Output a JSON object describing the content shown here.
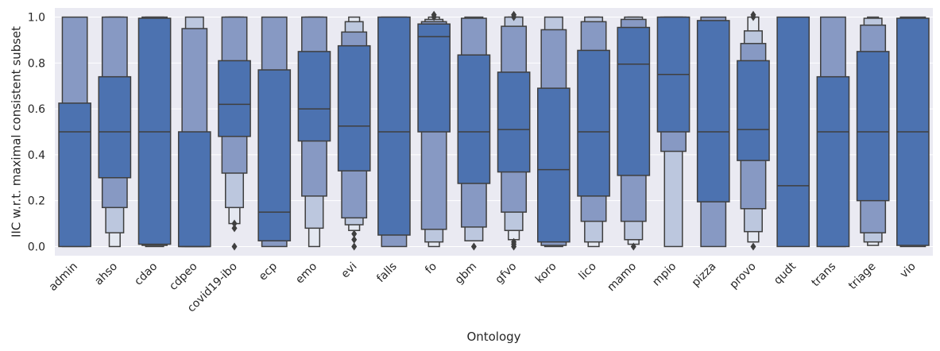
{
  "chart_data": {
    "type": "boxen",
    "xlabel": "Ontology",
    "ylabel": "IIC w.r.t. maximal consistent subset",
    "ylim": [
      -0.04,
      1.04
    ],
    "yticks": [
      0.0,
      0.2,
      0.4,
      0.6,
      0.8,
      1.0
    ],
    "ytick_labels": [
      "0.0",
      "0.2",
      "0.4",
      "0.6",
      "0.8",
      "1.0"
    ],
    "grid": true,
    "color": "#4c72b0",
    "boxes": [
      {
        "label": "admin",
        "median": 0.5,
        "levels": [
          [
            0.0,
            0.625
          ],
          [
            0.0,
            1.0
          ]
        ],
        "outliers": []
      },
      {
        "label": "ahso",
        "median": 0.5,
        "levels": [
          [
            0.3,
            0.74
          ],
          [
            0.17,
            1.0
          ],
          [
            0.06,
            1.0
          ],
          [
            0.0,
            1.0
          ]
        ],
        "outliers": []
      },
      {
        "label": "cdao",
        "median": 0.5,
        "levels": [
          [
            0.01,
            0.995
          ],
          [
            0.005,
            1.0
          ],
          [
            0.0,
            1.0
          ]
        ],
        "outliers": []
      },
      {
        "label": "cdpeo",
        "median": 0.0,
        "levels": [
          [
            0.0,
            0.5
          ],
          [
            0.0,
            0.95
          ],
          [
            0.0,
            1.0
          ]
        ],
        "outliers": []
      },
      {
        "label": "covid19-ibo",
        "median": 0.62,
        "levels": [
          [
            0.48,
            0.81
          ],
          [
            0.32,
            1.0
          ],
          [
            0.17,
            1.0
          ],
          [
            0.1,
            1.0
          ]
        ],
        "outliers": [
          0.0,
          0.08,
          0.1
        ]
      },
      {
        "label": "ecp",
        "median": 0.15,
        "levels": [
          [
            0.025,
            0.77
          ],
          [
            0.0,
            1.0
          ]
        ],
        "outliers": []
      },
      {
        "label": "emo",
        "median": 0.6,
        "levels": [
          [
            0.46,
            0.85
          ],
          [
            0.22,
            1.0
          ],
          [
            0.08,
            1.0
          ],
          [
            0.0,
            1.0
          ]
        ],
        "outliers": []
      },
      {
        "label": "evi",
        "median": 0.525,
        "levels": [
          [
            0.33,
            0.875
          ],
          [
            0.125,
            0.935
          ],
          [
            0.095,
            0.98
          ],
          [
            0.07,
            1.0
          ]
        ],
        "outliers": [
          0.0,
          0.03,
          0.055
        ]
      },
      {
        "label": "falls",
        "median": 0.5,
        "levels": [
          [
            0.05,
            1.0
          ],
          [
            0.0,
            1.0
          ]
        ],
        "outliers": []
      },
      {
        "label": "fo",
        "median": 0.915,
        "levels": [
          [
            0.5,
            0.97
          ],
          [
            0.075,
            0.98
          ],
          [
            0.02,
            0.99
          ],
          [
            0.0,
            1.0
          ]
        ],
        "outliers": [
          1.0,
          1.01
        ]
      },
      {
        "label": "gbm",
        "median": 0.5,
        "levels": [
          [
            0.275,
            0.835
          ],
          [
            0.085,
            0.995
          ],
          [
            0.025,
            1.0
          ]
        ],
        "outliers": [
          0.0
        ]
      },
      {
        "label": "gfvo",
        "median": 0.51,
        "levels": [
          [
            0.325,
            0.76
          ],
          [
            0.15,
            0.96
          ],
          [
            0.07,
            1.0
          ],
          [
            0.03,
            1.0
          ]
        ],
        "outliers": [
          0.0,
          0.01,
          0.02,
          1.0,
          1.01
        ]
      },
      {
        "label": "koro",
        "median": 0.335,
        "levels": [
          [
            0.02,
            0.69
          ],
          [
            0.005,
            0.945
          ],
          [
            0.0,
            1.0
          ]
        ],
        "outliers": []
      },
      {
        "label": "lico",
        "median": 0.5,
        "levels": [
          [
            0.22,
            0.855
          ],
          [
            0.11,
            0.98
          ],
          [
            0.02,
            1.0
          ],
          [
            0.0,
            1.0
          ]
        ],
        "outliers": []
      },
      {
        "label": "mamo",
        "median": 0.795,
        "levels": [
          [
            0.31,
            0.955
          ],
          [
            0.11,
            0.99
          ],
          [
            0.03,
            1.0
          ],
          [
            0.01,
            1.0
          ]
        ],
        "outliers": [
          0.0
        ]
      },
      {
        "label": "mpio",
        "median": 0.75,
        "levels": [
          [
            0.5,
            1.0
          ],
          [
            0.415,
            1.0
          ],
          [
            0.0,
            1.0
          ]
        ],
        "outliers": []
      },
      {
        "label": "pizza",
        "median": 0.5,
        "levels": [
          [
            0.195,
            0.985
          ],
          [
            0.0,
            1.0
          ]
        ],
        "outliers": []
      },
      {
        "label": "provo",
        "median": 0.51,
        "levels": [
          [
            0.375,
            0.81
          ],
          [
            0.165,
            0.885
          ],
          [
            0.065,
            0.94
          ],
          [
            0.02,
            1.0
          ]
        ],
        "outliers": [
          0.0,
          1.0,
          1.01
        ]
      },
      {
        "label": "qudt",
        "median": 0.265,
        "levels": [
          [
            0.0,
            1.0
          ]
        ],
        "outliers": []
      },
      {
        "label": "trans",
        "median": 0.5,
        "levels": [
          [
            0.0,
            0.74
          ],
          [
            0.0,
            1.0
          ]
        ],
        "outliers": []
      },
      {
        "label": "triage",
        "median": 0.5,
        "levels": [
          [
            0.2,
            0.85
          ],
          [
            0.06,
            0.965
          ],
          [
            0.02,
            0.995
          ],
          [
            0.005,
            1.0
          ]
        ],
        "outliers": []
      },
      {
        "label": "vio",
        "median": 0.5,
        "levels": [
          [
            0.005,
            0.995
          ],
          [
            0.0,
            1.0
          ]
        ],
        "outliers": []
      }
    ]
  }
}
